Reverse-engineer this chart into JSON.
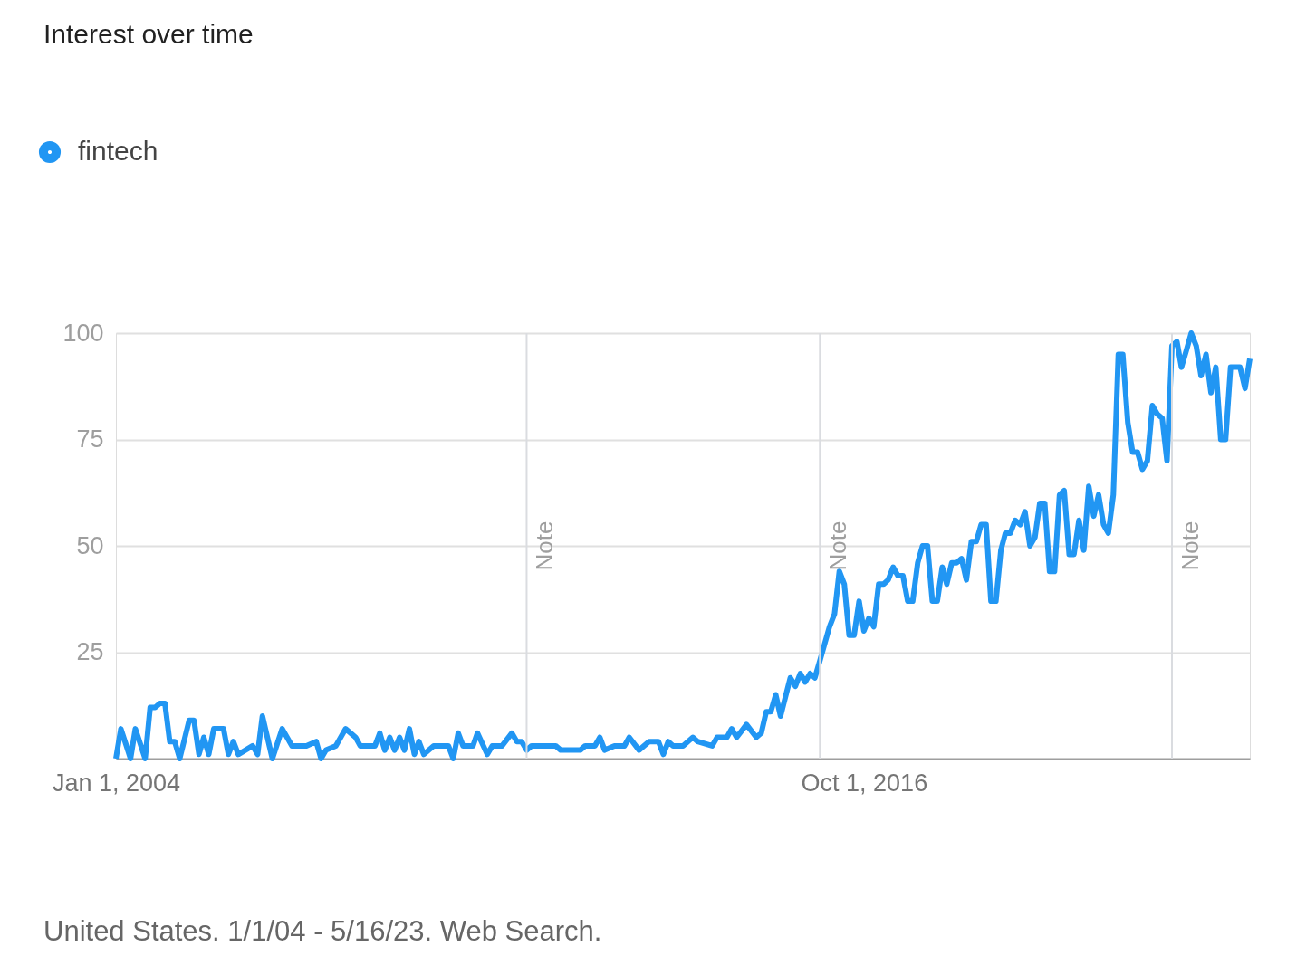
{
  "chart_data": {
    "type": "line",
    "title": "Interest over time",
    "x": [
      "2004-01",
      "2004-02",
      "2004-04",
      "2004-05",
      "2004-07",
      "2004-08",
      "2004-09",
      "2004-10",
      "2004-11",
      "2004-12",
      "2005-01",
      "2005-02",
      "2005-04",
      "2005-05",
      "2005-06",
      "2005-07",
      "2005-08",
      "2005-09",
      "2005-11",
      "2005-12",
      "2006-01",
      "2006-02",
      "2006-05",
      "2006-06",
      "2006-07",
      "2006-09",
      "2006-11",
      "2007-01",
      "2007-04",
      "2007-06",
      "2007-07",
      "2007-08",
      "2007-10",
      "2007-12",
      "2008-02",
      "2008-03",
      "2008-06",
      "2008-07",
      "2008-08",
      "2008-09",
      "2008-10",
      "2008-11",
      "2008-12",
      "2009-01",
      "2009-02",
      "2009-03",
      "2009-04",
      "2009-06",
      "2009-09",
      "2009-10",
      "2009-11",
      "2009-12",
      "2010-02",
      "2010-03",
      "2010-05",
      "2010-06",
      "2010-08",
      "2010-10",
      "2010-11",
      "2010-12",
      "2011-01",
      "2011-02",
      "2011-07",
      "2011-08",
      "2011-12",
      "2012-01",
      "2012-03",
      "2012-04",
      "2012-05",
      "2012-07",
      "2012-09",
      "2012-10",
      "2012-12",
      "2013-02",
      "2013-04",
      "2013-05",
      "2013-06",
      "2013-07",
      "2013-09",
      "2013-11",
      "2013-12",
      "2014-03",
      "2014-04",
      "2014-06",
      "2014-07",
      "2014-08",
      "2014-10",
      "2014-12",
      "2015-01",
      "2015-02",
      "2015-03",
      "2015-04",
      "2015-05",
      "2015-07",
      "2015-08",
      "2015-09",
      "2015-10",
      "2015-11",
      "2015-12",
      "2016-01",
      "2016-03",
      "2016-04",
      "2016-05",
      "2016-06",
      "2016-07",
      "2016-08",
      "2016-09",
      "2016-10",
      "2016-11",
      "2016-12",
      "2017-01",
      "2017-02",
      "2017-03",
      "2017-04",
      "2017-05",
      "2017-06",
      "2017-07",
      "2017-08",
      "2017-09",
      "2017-10",
      "2017-11",
      "2017-12",
      "2018-01",
      "2018-02",
      "2018-03",
      "2018-04",
      "2018-05",
      "2018-06",
      "2018-07",
      "2018-08",
      "2018-09",
      "2018-10",
      "2018-11",
      "2018-12",
      "2019-01",
      "2019-02",
      "2019-03",
      "2019-04",
      "2019-05",
      "2019-06",
      "2019-07",
      "2019-08",
      "2019-09",
      "2019-10",
      "2019-11",
      "2019-12",
      "2020-01",
      "2020-02",
      "2020-03",
      "2020-04",
      "2020-05",
      "2020-06",
      "2020-07",
      "2020-08",
      "2020-09",
      "2020-10",
      "2020-11",
      "2020-12",
      "2021-01",
      "2021-02",
      "2021-03",
      "2021-04",
      "2021-05",
      "2021-06",
      "2021-07",
      "2021-08",
      "2021-09",
      "2021-10",
      "2021-11",
      "2021-12",
      "2022-01",
      "2022-02",
      "2022-03",
      "2022-04",
      "2022-05",
      "2022-06",
      "2022-07",
      "2022-08",
      "2022-09",
      "2022-10",
      "2022-11",
      "2022-12",
      "2023-01",
      "2023-02",
      "2023-03",
      "2023-04",
      "2023-05"
    ],
    "series": [
      {
        "name": "fintech",
        "color": "#2196f3",
        "values": [
          0,
          7,
          0,
          7,
          0,
          12,
          12,
          13,
          13,
          4,
          4,
          0,
          9,
          9,
          1,
          5,
          1,
          7,
          7,
          1,
          4,
          1,
          3,
          1,
          10,
          0,
          7,
          3,
          3,
          4,
          0,
          2,
          3,
          7,
          5,
          3,
          3,
          6,
          2,
          5,
          2,
          5,
          2,
          7,
          1,
          4,
          1,
          3,
          3,
          0,
          6,
          3,
          3,
          6,
          1,
          3,
          3,
          6,
          4,
          4,
          2,
          3,
          3,
          2,
          2,
          3,
          3,
          5,
          2,
          3,
          3,
          5,
          2,
          4,
          4,
          1,
          4,
          3,
          3,
          5,
          4,
          3,
          5,
          5,
          7,
          5,
          8,
          5,
          6,
          11,
          11,
          15,
          10,
          19,
          17,
          20,
          18,
          20,
          19,
          23,
          31,
          34,
          44,
          41,
          29,
          29,
          37,
          30,
          33,
          31,
          41,
          41,
          42,
          45,
          43,
          43,
          37,
          37,
          46,
          50,
          50,
          37,
          37,
          45,
          41,
          46,
          46,
          47,
          42,
          51,
          51,
          55,
          55,
          37,
          37,
          49,
          53,
          53,
          56,
          55,
          58,
          50,
          52,
          60,
          60,
          44,
          44,
          62,
          63,
          48,
          48,
          56,
          49,
          64,
          57,
          62,
          55,
          53,
          62,
          95,
          95,
          79,
          72,
          72,
          68,
          70,
          83,
          81,
          80,
          70,
          97,
          98,
          92,
          96,
          100,
          97,
          90,
          95,
          86,
          92,
          75,
          75,
          92,
          92,
          92,
          87,
          94
        ]
      }
    ],
    "xlim": [
      "2004-01",
      "2023-05"
    ],
    "xticks": [
      {
        "value": "2004-01-01",
        "label": "Jan 1, 2004"
      },
      {
        "value": "2016-10-01",
        "label": "Oct 1, 2016"
      }
    ],
    "ylim": [
      0,
      100
    ],
    "yticks": [
      25,
      50,
      75,
      100
    ],
    "grid": "y",
    "legend": "top left",
    "marker": "none",
    "line_style": "solid",
    "ref_lines": [
      {
        "axis": "x",
        "value": "2011-01",
        "label": "Note",
        "color": "#dadce0"
      },
      {
        "axis": "x",
        "value": "2016-01",
        "label": "Note",
        "color": "#dadce0"
      },
      {
        "axis": "x",
        "value": "2022-01",
        "label": "Note",
        "color": "#dadce0"
      }
    ],
    "annotations": [
      "United States. 1/1/04 - 5/16/23. Web Search."
    ]
  }
}
